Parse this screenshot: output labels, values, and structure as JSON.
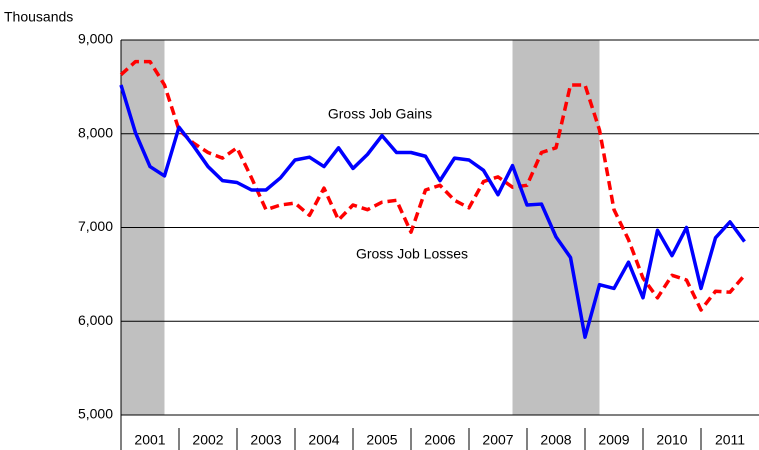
{
  "chart_data": {
    "type": "line",
    "y_axis_label": "Thousands",
    "annotations": [
      "Gross Job Gains",
      "Gross Job Losses"
    ],
    "x": [
      2001,
      2001.25,
      2001.5,
      2001.75,
      2002,
      2002.25,
      2002.5,
      2002.75,
      2003,
      2003.25,
      2003.5,
      2003.75,
      2004,
      2004.25,
      2004.5,
      2004.75,
      2005,
      2005.25,
      2005.5,
      2005.75,
      2006,
      2006.25,
      2006.5,
      2006.75,
      2007,
      2007.25,
      2007.5,
      2007.75,
      2008,
      2008.25,
      2008.5,
      2008.75,
      2009,
      2009.25,
      2009.5,
      2009.75,
      2010,
      2010.25,
      2010.5,
      2010.75,
      2011,
      2011.25,
      2011.5,
      2011.75
    ],
    "series": [
      {
        "name": "Gross Job Gains",
        "color": "#0000ff",
        "dashed": false,
        "values": [
          8520,
          8010,
          7650,
          7550,
          8070,
          7870,
          7650,
          7500,
          7480,
          7400,
          7400,
          7530,
          7720,
          7750,
          7650,
          7850,
          7630,
          7780,
          7980,
          7800,
          7800,
          7760,
          7500,
          7740,
          7720,
          7610,
          7350,
          7660,
          7240,
          7250,
          6900,
          6680,
          5830,
          6390,
          6350,
          6630,
          6250,
          6970,
          6700,
          7000,
          6350,
          6890,
          7060,
          6850
        ]
      },
      {
        "name": "Gross Job Losses",
        "color": "#ff0000",
        "dashed": true,
        "values": [
          8630,
          8770,
          8770,
          8520,
          8040,
          7900,
          7800,
          7740,
          7850,
          7530,
          7190,
          7240,
          7260,
          7130,
          7420,
          7080,
          7240,
          7190,
          7270,
          7290,
          6950,
          7400,
          7450,
          7290,
          7210,
          7490,
          7540,
          7430,
          7450,
          7800,
          7850,
          8520,
          8520,
          8040,
          7190,
          6870,
          6460,
          6250,
          6490,
          6440,
          6120,
          6320,
          6310,
          6490
        ]
      }
    ],
    "recessions": [
      [
        2001,
        2001.75
      ],
      [
        2007.75,
        2009.25
      ]
    ],
    "recession_color": "#c0c0c0",
    "xlim": [
      2001,
      2012
    ],
    "xticks": [
      {
        "value": 2001.5,
        "label": "2001"
      },
      {
        "value": 2002.5,
        "label": "2002"
      },
      {
        "value": 2003.5,
        "label": "2003"
      },
      {
        "value": 2004.5,
        "label": "2004"
      },
      {
        "value": 2005.5,
        "label": "2005"
      },
      {
        "value": 2006.5,
        "label": "2006"
      },
      {
        "value": 2007.5,
        "label": "2007"
      },
      {
        "value": 2008.5,
        "label": "2008"
      },
      {
        "value": 2009.5,
        "label": "2009"
      },
      {
        "value": 2010.5,
        "label": "2010"
      },
      {
        "value": 2011.5,
        "label": "2011"
      }
    ],
    "ylim": [
      5000,
      9000
    ],
    "yticks": [
      {
        "value": 5000,
        "label": "5,000"
      },
      {
        "value": 6000,
        "label": "6,000"
      },
      {
        "value": 7000,
        "label": "7,000"
      },
      {
        "value": 8000,
        "label": "8,000"
      },
      {
        "value": 9000,
        "label": "9,000"
      }
    ],
    "grid": true
  }
}
